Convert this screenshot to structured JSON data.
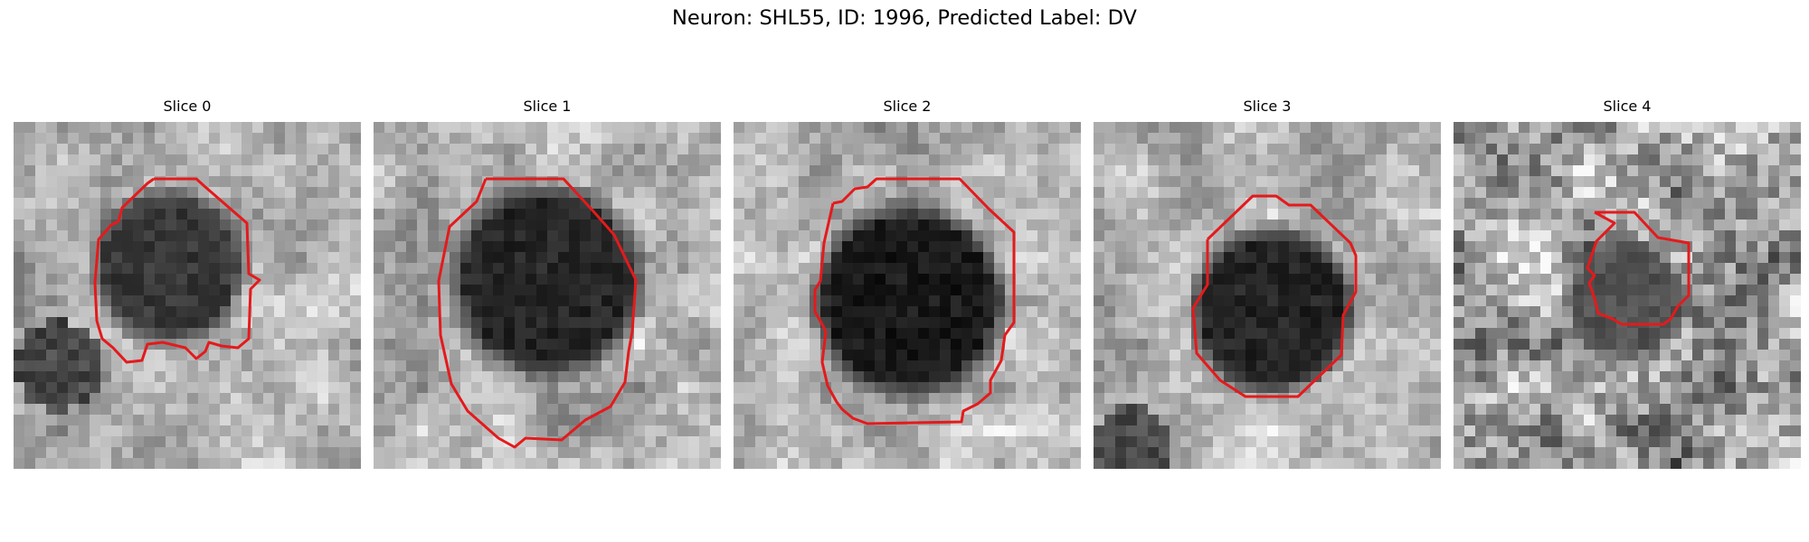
{
  "figure": {
    "title": "Neuron: SHL55, ID: 1996, Predicted Label: DV"
  },
  "colors": {
    "contour": "#e41a1c",
    "background": "#ffffff"
  },
  "panels": [
    {
      "title": "Slice 0"
    },
    {
      "title": "Slice 1"
    },
    {
      "title": "Slice 2"
    },
    {
      "title": "Slice 3"
    },
    {
      "title": "Slice 4"
    }
  ]
}
